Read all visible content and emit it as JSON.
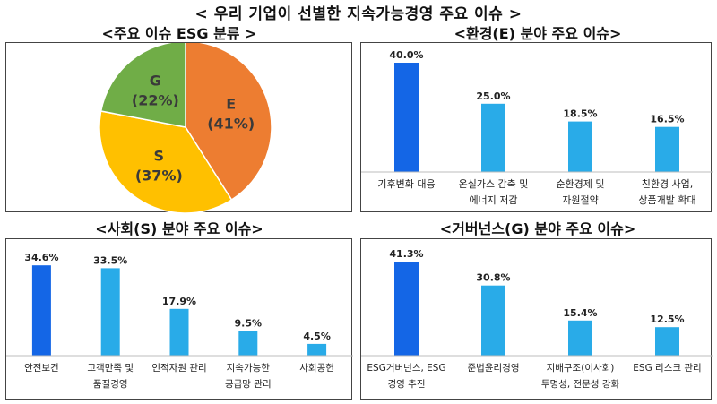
{
  "title": "< 우리 기업이 선별한 지속가능경영 주요 이슈 >",
  "colors": {
    "primary_bar": "#1466e6",
    "secondary_bar": "#29abe8",
    "pie_e": "#ed7d31",
    "pie_s": "#ffc000",
    "pie_g": "#70ad47"
  },
  "chart_data": [
    {
      "type": "pie",
      "title": "<주요 이슈 ESG 분류 >",
      "slices": [
        {
          "label": "E",
          "value": 41,
          "value_label": "(41%)",
          "color": "#ed7d31"
        },
        {
          "label": "S",
          "value": 37,
          "value_label": "(37%)",
          "color": "#ffc000"
        },
        {
          "label": "G",
          "value": 22,
          "value_label": "(22%)",
          "color": "#70ad47"
        }
      ]
    },
    {
      "type": "bar",
      "title": "<환경(E) 분야 주요 이슈>",
      "categories": [
        [
          "기후변화 대응"
        ],
        [
          "온실가스 감축 및",
          "에너지 저감"
        ],
        [
          "순환경제 및",
          "자원절약"
        ],
        [
          "친환경 사업,",
          "상품개발 확대"
        ]
      ],
      "values": [
        40.0,
        25.0,
        18.5,
        16.5
      ],
      "value_labels": [
        "40.0%",
        "25.0%",
        "18.5%",
        "16.5%"
      ],
      "ylim": [
        0,
        40
      ]
    },
    {
      "type": "bar",
      "title": "<사회(S) 분야 주요 이슈>",
      "categories": [
        [
          "안전보건"
        ],
        [
          "고객만족 및",
          "품질경영"
        ],
        [
          "인적자원 관리"
        ],
        [
          "지속가능한",
          "공급망 관리"
        ],
        [
          "사회공헌"
        ]
      ],
      "values": [
        34.6,
        33.5,
        17.9,
        9.5,
        4.5
      ],
      "value_labels": [
        "34.6%",
        "33.5%",
        "17.9%",
        "9.5%",
        "4.5%"
      ],
      "ylim": [
        0,
        35
      ]
    },
    {
      "type": "bar",
      "title": "<거버넌스(G) 분야 주요 이슈>",
      "categories": [
        [
          "ESG거버넌스, ESG",
          "경영 추진"
        ],
        [
          "준법윤리경영"
        ],
        [
          "지배구조(이사회)",
          "투명성, 전문성 강화"
        ],
        [
          "ESG 리스크 관리"
        ]
      ],
      "values": [
        41.3,
        30.8,
        15.4,
        12.5
      ],
      "value_labels": [
        "41.3%",
        "30.8%",
        "15.4%",
        "12.5%"
      ],
      "ylim": [
        0,
        41.3
      ]
    }
  ]
}
